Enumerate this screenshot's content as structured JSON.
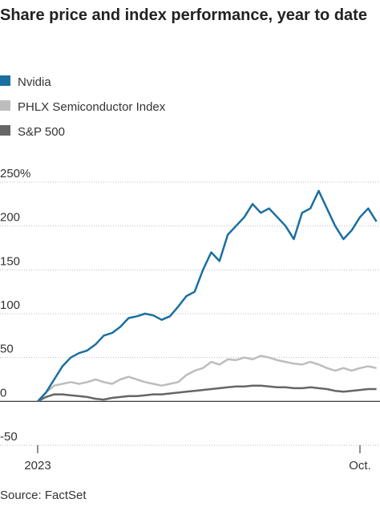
{
  "chart_data": {
    "type": "line",
    "title": "Share price and index performance, year to date",
    "source": "Source: FactSet",
    "x": [
      0,
      1,
      2,
      3,
      4,
      5,
      6,
      7,
      8,
      9,
      10,
      11,
      12,
      13,
      14,
      15,
      16,
      17,
      18,
      19,
      20,
      21,
      22,
      23,
      24,
      25,
      26,
      27,
      28,
      29,
      30,
      31,
      32,
      33,
      34,
      35,
      36,
      37,
      38,
      39,
      40,
      41
    ],
    "xlim": [
      0,
      41.5
    ],
    "xticks": [
      {
        "value": 0,
        "label": "2023"
      },
      {
        "value": 39,
        "label": "Oct."
      }
    ],
    "ylim": [
      -50,
      250
    ],
    "yticks": [
      -50,
      0,
      50,
      100,
      150,
      200,
      {
        "value": 250,
        "label": "250%"
      }
    ],
    "grid": true,
    "series": [
      {
        "name": "Nvidia",
        "color": "#1a6fa0",
        "values": [
          0,
          10,
          25,
          40,
          50,
          55,
          58,
          65,
          75,
          78,
          85,
          95,
          97,
          100,
          98,
          93,
          97,
          108,
          120,
          125,
          150,
          170,
          160,
          190,
          200,
          210,
          225,
          215,
          220,
          210,
          200,
          185,
          215,
          220,
          240,
          220,
          200,
          185,
          195,
          210,
          220,
          205
        ]
      },
      {
        "name": "PHLX Semiconductor Index",
        "color": "#bdbdbd",
        "values": [
          0,
          10,
          18,
          20,
          22,
          20,
          22,
          25,
          22,
          20,
          25,
          28,
          25,
          22,
          20,
          18,
          20,
          22,
          30,
          35,
          38,
          45,
          42,
          48,
          47,
          50,
          48,
          52,
          50,
          47,
          45,
          43,
          42,
          45,
          42,
          38,
          35,
          38,
          35,
          38,
          40,
          38
        ]
      },
      {
        "name": "S&P 500",
        "color": "#666666",
        "values": [
          0,
          5,
          8,
          8,
          7,
          6,
          5,
          3,
          2,
          4,
          5,
          6,
          6,
          7,
          8,
          8,
          9,
          10,
          11,
          12,
          13,
          14,
          15,
          16,
          17,
          17,
          18,
          18,
          17,
          16,
          16,
          15,
          15,
          16,
          15,
          14,
          12,
          11,
          12,
          13,
          14,
          14
        ]
      }
    ]
  }
}
